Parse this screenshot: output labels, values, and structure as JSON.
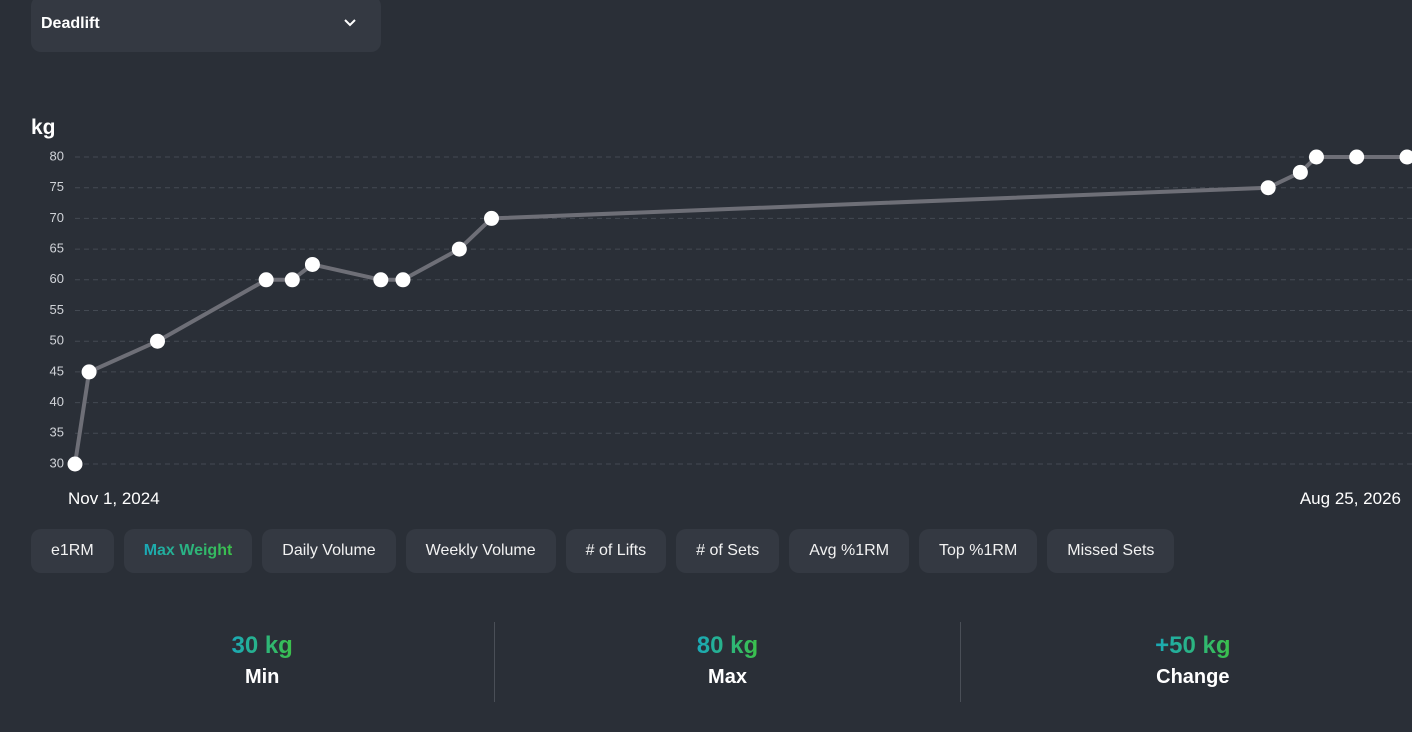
{
  "exercise_select": {
    "label": "Deadlift"
  },
  "chart_data": {
    "type": "line",
    "y_label": "kg",
    "x": [
      "2024-11-01",
      "2024-11-08",
      "2024-12-12",
      "2025-02-04",
      "2025-02-17",
      "2025-02-27",
      "2025-04-02",
      "2025-04-13",
      "2025-05-11",
      "2025-05-27",
      "2026-06-17",
      "2026-07-03",
      "2026-07-11",
      "2026-07-31",
      "2026-08-25"
    ],
    "series": [
      {
        "color": "#6e6f77",
        "values": [
          30,
          45,
          50,
          60,
          60,
          62.5,
          60,
          60,
          65,
          70,
          75,
          77.5,
          80,
          80,
          80
        ]
      }
    ],
    "xlim": [
      "2024-11-01",
      "2026-08-25"
    ],
    "xticks": [
      {
        "value": "2024-11-01",
        "label": "Nov 1, 2024"
      },
      {
        "value": "2026-08-25",
        "label": "Aug 25, 2026"
      }
    ],
    "ylim": [
      30,
      80
    ],
    "yticks": [
      30,
      35,
      40,
      45,
      50,
      55,
      60,
      65,
      70,
      75,
      80
    ],
    "grid": true
  },
  "tabs": {
    "items": [
      "e1RM",
      "Max Weight",
      "Daily Volume",
      "Weekly Volume",
      "# of Lifts",
      "# of Sets",
      "Avg %1RM",
      "Top %1RM",
      "Missed Sets"
    ],
    "active": 1
  },
  "stats": [
    {
      "value": "30 kg",
      "label": "Min"
    },
    {
      "value": "80 kg",
      "label": "Max"
    },
    {
      "value": "+50 kg",
      "label": "Change"
    }
  ]
}
